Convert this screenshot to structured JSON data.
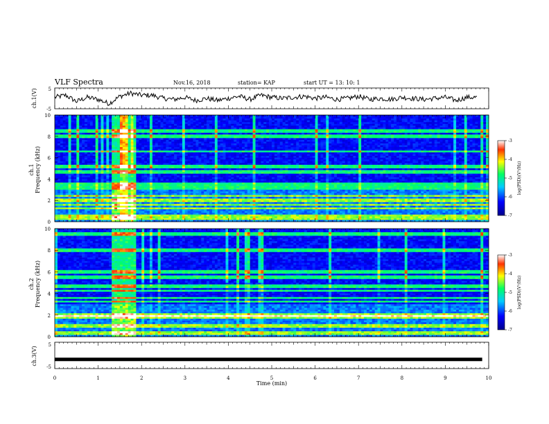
{
  "header": {
    "title": "VLF Spectra",
    "date": "Nov.16, 2018",
    "station": "station= KAP",
    "start": "start  UT  =   13: 10: 1"
  },
  "chart_data": {
    "type": "heatmap",
    "x_axis": {
      "label": "Time  (min)",
      "range": [
        0,
        10
      ],
      "ticks": [
        "0",
        "1",
        "2",
        "3",
        "4",
        "5",
        "6",
        "7",
        "8",
        "9",
        "10"
      ]
    },
    "panels": [
      {
        "type": "line",
        "ylabel": "ch.1(V)",
        "ylim": [
          -5,
          5
        ],
        "yticks": [
          "5",
          "-5"
        ],
        "series": [
          {
            "x": [
              0,
              0.25,
              0.5,
              0.75,
              1,
              1.25,
              1.5,
              1.75,
              2,
              2.25,
              2.5,
              2.75,
              3,
              3.25,
              3.5,
              3.75,
              4,
              4.25,
              4.5,
              4.75,
              5,
              5.25,
              5.5,
              5.75,
              6,
              6.25,
              6.5,
              6.75,
              7,
              7.25,
              7.5,
              7.75,
              8,
              8.25,
              8.5,
              8.75,
              9,
              9.25,
              9.5,
              9.75
            ],
            "values": [
              0.5,
              1.5,
              -1.5,
              0.5,
              -0.5,
              -2.5,
              1.0,
              2.5,
              1.5,
              1.5,
              0,
              -0.5,
              0.5,
              -1.0,
              0,
              -1.0,
              0,
              1.0,
              -0.5,
              1.5,
              0.5,
              0,
              0.5,
              1.0,
              0,
              0.5,
              -0.5,
              0,
              1.0,
              -0.5,
              0,
              -0.5,
              0.5,
              0,
              -0.5,
              0,
              0.5,
              -1.0,
              0.5,
              0.5
            ]
          }
        ]
      },
      {
        "type": "heatmap",
        "ylabel": "ch.1\nFrequency  (kHz)",
        "ylim": [
          0,
          10
        ],
        "yticks": [
          "0",
          "2",
          "4",
          "6",
          "8",
          "10"
        ],
        "colorbar": {
          "label": "log(PSD)(V²/Hz)",
          "range": [
            -7,
            -3
          ],
          "ticks": [
            "-3",
            "-4",
            "-5",
            "-6",
            "-7"
          ]
        },
        "bands_khz": [
          0.2,
          0.5,
          1.2,
          1.6,
          2.0,
          2.4,
          3.2,
          3.5,
          4.7,
          5.2,
          6.6,
          8.0,
          8.5
        ],
        "burst_min": [
          1.3,
          1.85
        ]
      },
      {
        "type": "heatmap",
        "ylabel": "ch.2\nFrequency  (kHz)",
        "ylim": [
          0,
          10
        ],
        "yticks": [
          "0",
          "2",
          "4",
          "6",
          "8",
          "10"
        ],
        "colorbar": {
          "label": "log(PSD)(V²/Hz)",
          "range": [
            -7,
            -3
          ],
          "ticks": [
            "-3",
            "-4",
            "-5",
            "-6",
            "-7"
          ]
        },
        "bands_khz": [
          0.3,
          1.0,
          1.8,
          2.0,
          3.3,
          3.6,
          4.2,
          4.7,
          5.5,
          6.0,
          8.0,
          9.5
        ],
        "burst_min": [
          1.3,
          1.85
        ]
      },
      {
        "type": "line",
        "ylabel": "ch.3(V)",
        "ylim": [
          -5,
          5
        ],
        "yticks": [
          "5",
          "-5"
        ],
        "series": [
          {
            "x": [
              0,
              9.85
            ],
            "values": [
              -1.5,
              -1.5
            ]
          }
        ]
      }
    ]
  }
}
